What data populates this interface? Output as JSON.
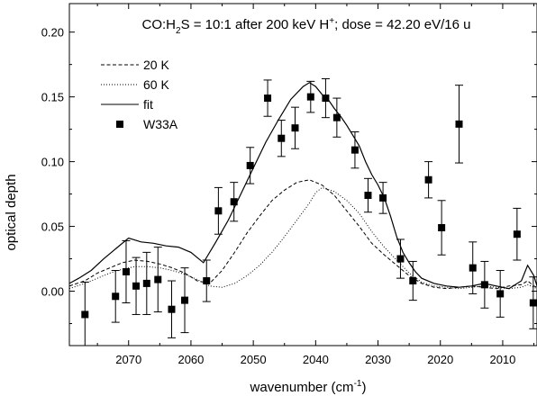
{
  "chart_data": {
    "type": "scatter",
    "title": {
      "pre": "CO:H",
      "sub": "2",
      "mid": "S = 10:1 after 200 keV H",
      "sup": "+",
      "post": "; dose = 42.20 eV/16 u"
    },
    "xlabel": {
      "main": "wavenumber (cm",
      "sup": "-1",
      "close": ")"
    },
    "ylabel": "optical depth",
    "xlim": [
      2079.5,
      2004.5
    ],
    "ylim": [
      -0.042,
      0.222
    ],
    "x_reversed": true,
    "x_ticks": [
      2070,
      2060,
      2050,
      2040,
      2030,
      2020,
      2010
    ],
    "y_ticks": [
      0.0,
      0.05,
      0.1,
      0.15,
      0.2
    ],
    "y_tick_labels": [
      "0.00",
      "0.05",
      "0.10",
      "0.15",
      "0.20"
    ],
    "legend_position": "top-left",
    "legend": [
      {
        "label": "20 K",
        "style": "dashed"
      },
      {
        "label": "60 K",
        "style": "dotted"
      },
      {
        "label": "fit",
        "style": "solid"
      },
      {
        "label": "W33A",
        "style": "square-marker"
      }
    ],
    "series": [
      {
        "name": "20 K",
        "style": "dashed",
        "x": [
          2079.5,
          2077,
          2075,
          2073,
          2071,
          2069,
          2067,
          2065,
          2063,
          2061,
          2059,
          2057,
          2055,
          2053,
          2051,
          2049,
          2047,
          2045,
          2043,
          2041,
          2039,
          2037,
          2035,
          2033,
          2031,
          2029,
          2027,
          2025,
          2023,
          2021,
          2019,
          2017,
          2015,
          2013,
          2011,
          2009,
          2007,
          2006,
          2005,
          2004.5
        ],
        "y": [
          0.004,
          0.008,
          0.014,
          0.018,
          0.022,
          0.024,
          0.023,
          0.021,
          0.018,
          0.014,
          0.008,
          0.006,
          0.016,
          0.03,
          0.045,
          0.058,
          0.07,
          0.078,
          0.084,
          0.086,
          0.082,
          0.074,
          0.062,
          0.05,
          0.037,
          0.028,
          0.02,
          0.012,
          0.006,
          0.003,
          0.002,
          0.003,
          0.004,
          0.003,
          0.002,
          0.004,
          0.005,
          0.008,
          0.004,
          0.003
        ]
      },
      {
        "name": "60 K",
        "style": "dotted",
        "x": [
          2079.5,
          2077,
          2075,
          2073,
          2071,
          2069,
          2067,
          2065,
          2063,
          2061,
          2059,
          2057,
          2055,
          2053,
          2051,
          2049,
          2047,
          2045,
          2043,
          2041,
          2040,
          2039,
          2037,
          2035,
          2033,
          2031,
          2029,
          2027,
          2025,
          2023,
          2021,
          2019,
          2017,
          2015,
          2013,
          2011,
          2009,
          2007,
          2006,
          2005,
          2004.5
        ],
        "y": [
          0.002,
          0.006,
          0.01,
          0.014,
          0.017,
          0.019,
          0.019,
          0.018,
          0.016,
          0.013,
          0.009,
          0.004,
          0.003,
          0.006,
          0.012,
          0.02,
          0.03,
          0.042,
          0.055,
          0.068,
          0.076,
          0.08,
          0.077,
          0.07,
          0.06,
          0.046,
          0.034,
          0.024,
          0.014,
          0.007,
          0.004,
          0.003,
          0.002,
          0.003,
          0.004,
          0.003,
          0.002,
          0.003,
          0.005,
          0.003,
          0.002
        ]
      },
      {
        "name": "fit",
        "style": "solid",
        "x": [
          2079.5,
          2078,
          2076,
          2074,
          2072,
          2070,
          2068,
          2066,
          2064,
          2062,
          2060,
          2058,
          2056,
          2054,
          2052,
          2050,
          2048,
          2046,
          2044,
          2042,
          2041,
          2040,
          2039,
          2038,
          2037,
          2036,
          2035,
          2034,
          2033,
          2032,
          2031,
          2030,
          2029,
          2028,
          2027,
          2026,
          2025,
          2024,
          2023,
          2021,
          2019,
          2017,
          2015,
          2013,
          2011,
          2009,
          2007,
          2006,
          2005,
          2004.5
        ],
        "y": [
          0.006,
          0.01,
          0.016,
          0.025,
          0.033,
          0.041,
          0.038,
          0.037,
          0.035,
          0.034,
          0.03,
          0.022,
          0.038,
          0.055,
          0.075,
          0.095,
          0.115,
          0.132,
          0.148,
          0.158,
          0.161,
          0.158,
          0.152,
          0.148,
          0.141,
          0.135,
          0.128,
          0.12,
          0.112,
          0.1,
          0.09,
          0.082,
          0.072,
          0.058,
          0.042,
          0.03,
          0.022,
          0.015,
          0.01,
          0.006,
          0.004,
          0.003,
          0.004,
          0.006,
          0.004,
          0.002,
          0.008,
          0.02,
          0.012,
          0.004
        ]
      },
      {
        "name": "W33A",
        "style": "square-marker",
        "points": [
          {
            "x": 2077.0,
            "y": -0.018,
            "err": 0.025
          },
          {
            "x": 2072.1,
            "y": -0.004,
            "err": 0.02
          },
          {
            "x": 2070.4,
            "y": 0.015,
            "err": 0.024
          },
          {
            "x": 2068.8,
            "y": 0.004,
            "err": 0.022
          },
          {
            "x": 2067.1,
            "y": 0.006,
            "err": 0.024
          },
          {
            "x": 2065.3,
            "y": 0.009,
            "err": 0.025
          },
          {
            "x": 2063.1,
            "y": -0.014,
            "err": 0.022
          },
          {
            "x": 2061.0,
            "y": -0.007,
            "err": 0.025
          },
          {
            "x": 2057.5,
            "y": 0.008,
            "err": 0.016
          },
          {
            "x": 2055.6,
            "y": 0.062,
            "err": 0.018
          },
          {
            "x": 2053.1,
            "y": 0.069,
            "err": 0.015
          },
          {
            "x": 2050.5,
            "y": 0.097,
            "err": 0.014
          },
          {
            "x": 2047.7,
            "y": 0.149,
            "err": 0.014
          },
          {
            "x": 2045.5,
            "y": 0.118,
            "err": 0.014
          },
          {
            "x": 2043.3,
            "y": 0.126,
            "err": 0.016
          },
          {
            "x": 2040.8,
            "y": 0.15,
            "err": 0.012
          },
          {
            "x": 2038.4,
            "y": 0.149,
            "err": 0.015
          },
          {
            "x": 2036.6,
            "y": 0.134,
            "err": 0.015
          },
          {
            "x": 2033.7,
            "y": 0.109,
            "err": 0.014
          },
          {
            "x": 2031.6,
            "y": 0.074,
            "err": 0.013
          },
          {
            "x": 2029.2,
            "y": 0.072,
            "err": 0.012
          },
          {
            "x": 2026.4,
            "y": 0.025,
            "err": 0.015
          },
          {
            "x": 2024.4,
            "y": 0.008,
            "err": 0.015
          },
          {
            "x": 2021.9,
            "y": 0.086,
            "err": 0.014
          },
          {
            "x": 2019.8,
            "y": 0.049,
            "err": 0.021
          },
          {
            "x": 2017.0,
            "y": 0.129,
            "err": 0.03
          },
          {
            "x": 2014.8,
            "y": 0.018,
            "err": 0.02
          },
          {
            "x": 2012.9,
            "y": 0.005,
            "err": 0.018
          },
          {
            "x": 2010.4,
            "y": -0.002,
            "err": 0.018
          },
          {
            "x": 2007.7,
            "y": 0.044,
            "err": 0.02
          },
          {
            "x": 2005.1,
            "y": -0.009,
            "err": 0.02
          }
        ]
      }
    ]
  }
}
